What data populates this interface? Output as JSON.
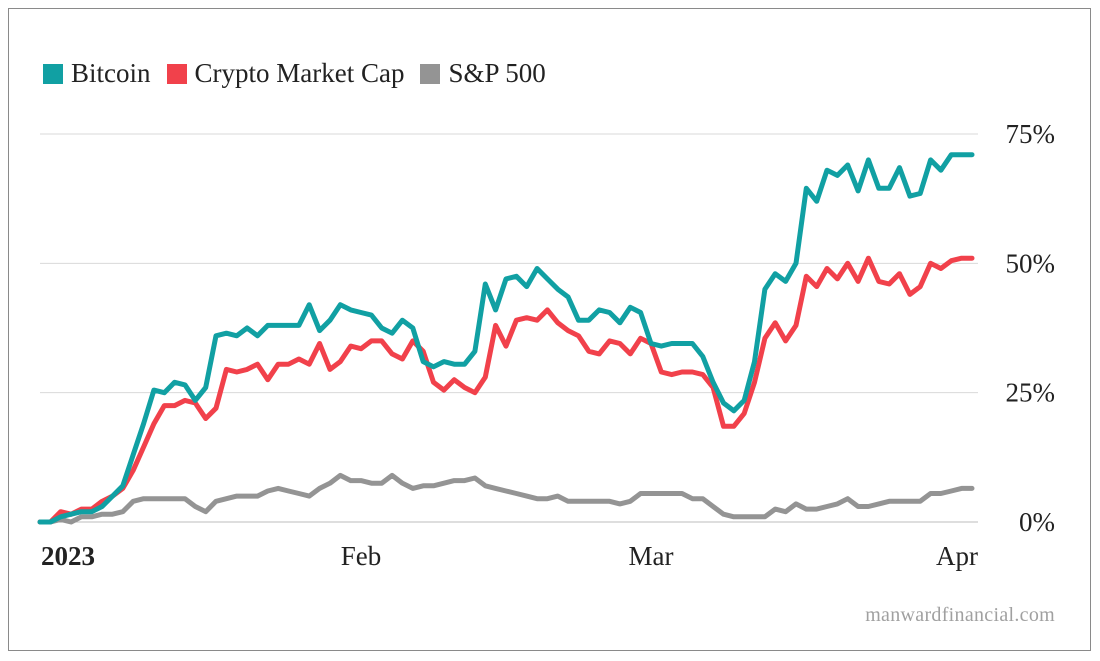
{
  "colors": {
    "bitcoin": "#11a0a3",
    "crypto": "#f1414b",
    "sp500": "#949494",
    "grid": "#d9d9d9"
  },
  "legend": [
    {
      "label": "Bitcoin",
      "color": "#11a0a3"
    },
    {
      "label": "Crypto Market Cap",
      "color": "#f1414b"
    },
    {
      "label": "S&P 500",
      "color": "#949494"
    }
  ],
  "watermark": "manwardfinancial.com",
  "chart_data": {
    "type": "line",
    "x": [
      0,
      1,
      2,
      3,
      4,
      5,
      6,
      7,
      8,
      9,
      10,
      11,
      12,
      13,
      14,
      15,
      16,
      17,
      18,
      19,
      20,
      21,
      22,
      23,
      24,
      25,
      26,
      27,
      28,
      29,
      30,
      31,
      32,
      33,
      34,
      35,
      36,
      37,
      38,
      39,
      40,
      41,
      42,
      43,
      44,
      45,
      46,
      47,
      48,
      49,
      50,
      51,
      52,
      53,
      54,
      55,
      56,
      57,
      58,
      59,
      60,
      61,
      62,
      63,
      64,
      65,
      66,
      67,
      68,
      69,
      70,
      71,
      72,
      73,
      74,
      75,
      76,
      77,
      78,
      79,
      80,
      81,
      82,
      83,
      84,
      85,
      86,
      87,
      88,
      89,
      90
    ],
    "xlim": [
      0,
      90
    ],
    "x_ticks": [
      {
        "x": 0,
        "label": "2023",
        "bold": true
      },
      {
        "x": 31,
        "label": "Feb",
        "bold": false
      },
      {
        "x": 59,
        "label": "Mar",
        "bold": false
      },
      {
        "x": 90,
        "label": "Apr",
        "bold": false
      }
    ],
    "ylim": [
      0,
      75
    ],
    "y_ticks": [
      {
        "value": 0,
        "label": "0%"
      },
      {
        "value": 25,
        "label": "25%"
      },
      {
        "value": 50,
        "label": "50%"
      },
      {
        "value": 75,
        "label": "75%"
      }
    ],
    "grid": true,
    "legend_position": "top-left",
    "series": [
      {
        "name": "Bitcoin",
        "color": "#11a0a3",
        "values": [
          0,
          0,
          1,
          1.5,
          2,
          2,
          3,
          5,
          7,
          13,
          19,
          25.5,
          25,
          27,
          26.5,
          23.5,
          26,
          36,
          36.5,
          36,
          37.5,
          36,
          38,
          38,
          38,
          38,
          42,
          37,
          39,
          42,
          41,
          40.5,
          40,
          37.5,
          36.5,
          39,
          37.5,
          31,
          30,
          31,
          30.5,
          30.5,
          33,
          46,
          41,
          47,
          47.5,
          45.5,
          49,
          47,
          45,
          43.5,
          39,
          39,
          41,
          40.5,
          38.5,
          41.5,
          40.5,
          34.5,
          34,
          34.5,
          34.5,
          34.5,
          32,
          27,
          23,
          21.5,
          23.5,
          31,
          45,
          48,
          46.5,
          50,
          64.5,
          62,
          68,
          67,
          69,
          64,
          70,
          64.5,
          64.5,
          68.5,
          63,
          63.5,
          70,
          68,
          71,
          71,
          71
        ]
      },
      {
        "name": "Crypto Market Cap",
        "color": "#f1414b",
        "values": [
          0,
          0,
          2,
          1.5,
          2.5,
          2.5,
          4,
          5,
          6.5,
          10,
          14.5,
          19,
          22.5,
          22.5,
          23.5,
          23,
          20,
          22,
          29.5,
          29,
          29.5,
          30.5,
          27.5,
          30.5,
          30.5,
          31.5,
          30.5,
          34.5,
          29.5,
          31,
          34,
          33.5,
          35,
          35,
          32.5,
          31.5,
          35,
          33,
          27,
          25.5,
          27.5,
          26,
          25,
          28,
          38,
          34,
          39,
          39.5,
          39,
          41,
          38.5,
          37,
          36,
          33,
          32.5,
          35,
          34.5,
          32.5,
          35.5,
          34.5,
          29,
          28.5,
          29,
          29,
          28.5,
          26,
          18.5,
          18.5,
          21,
          27,
          35.5,
          38.5,
          35,
          38,
          47.5,
          45.5,
          49,
          47,
          50,
          46.5,
          51,
          46.5,
          46,
          48,
          44,
          45.5,
          50,
          49,
          50.5,
          51,
          51
        ]
      },
      {
        "name": "S&P 500",
        "color": "#949494",
        "values": [
          0,
          0,
          0.5,
          0,
          1,
          1,
          1.5,
          1.5,
          2,
          4,
          4.5,
          4.5,
          4.5,
          4.5,
          4.5,
          3,
          2,
          4,
          4.5,
          5,
          5,
          5,
          6,
          6.5,
          6,
          5.5,
          5,
          6.5,
          7.5,
          9,
          8,
          8,
          7.5,
          7.5,
          9,
          7.5,
          6.5,
          7,
          7,
          7.5,
          8,
          8,
          8.5,
          7,
          6.5,
          6,
          5.5,
          5,
          4.5,
          4.5,
          5,
          4,
          4,
          4,
          4,
          4,
          3.5,
          4,
          5.5,
          5.5,
          5.5,
          5.5,
          5.5,
          4.5,
          4.5,
          3,
          1.5,
          1,
          1,
          1,
          1,
          2.5,
          2,
          3.5,
          2.5,
          2.5,
          3,
          3.5,
          4.5,
          3,
          3,
          3.5,
          4,
          4,
          4,
          4,
          5.5,
          5.5,
          6,
          6.5,
          6.5
        ]
      }
    ]
  }
}
